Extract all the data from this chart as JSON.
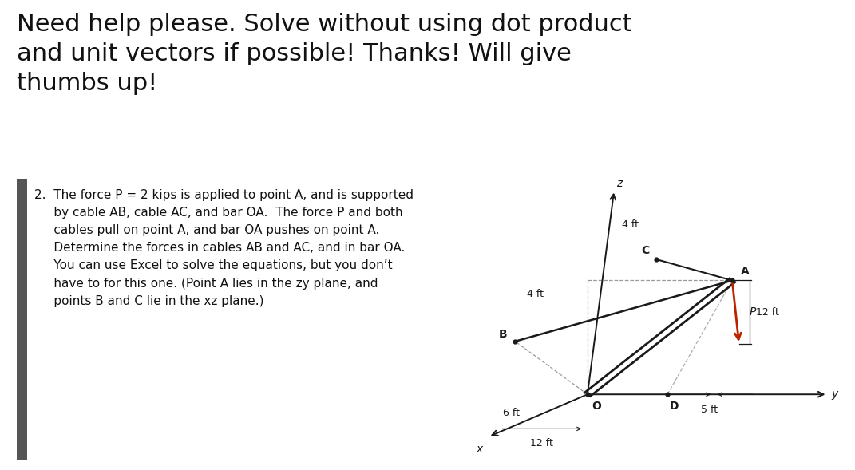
{
  "title_text": "Need help please. Solve without using dot product\nand unit vectors if possible! Thanks! Will give\nthumbs up!",
  "title_fontsize": 22,
  "title_color": "#111111",
  "page_bg": "#ffffff",
  "box_bg": "#d8d8d8",
  "problem_text_line1": "2.  The force P = 2 kips is applied to point A, and is supported",
  "problem_text_line2": "     by cable AB, cable AC, and bar OA.  The force P and both",
  "problem_text_line3": "     cables pull on point A, and bar OA pushes on point A.",
  "problem_text_line4": "     Determine the forces in cables AB and AC, and in bar OA.",
  "problem_text_line5": "     You can use Excel to solve the equations, but you don’t",
  "problem_text_line6": "     have to for this one. (Point A lies in the zy plane, and",
  "problem_text_line7": "     points B and C lie in the xz plane.)",
  "problem_fontsize": 11.0,
  "dim_4ft_top": "4 ft",
  "dim_4ft_left": "4 ft",
  "dim_6ft": "6 ft",
  "dim_5ft": "5 ft",
  "dim_12ft_right": "12 ft",
  "dim_12ft_bottom": "12 ft",
  "lbl_x": "x",
  "lbl_y": "y",
  "lbl_z": "z",
  "lbl_A": "A",
  "lbl_B": "B",
  "lbl_C": "C",
  "lbl_O": "O",
  "lbl_D": "D",
  "lbl_P": "P",
  "line_dark": "#1a1a1a",
  "line_dash": "#888888",
  "arrow_red": "#bb2200",
  "box_border": "#555555"
}
